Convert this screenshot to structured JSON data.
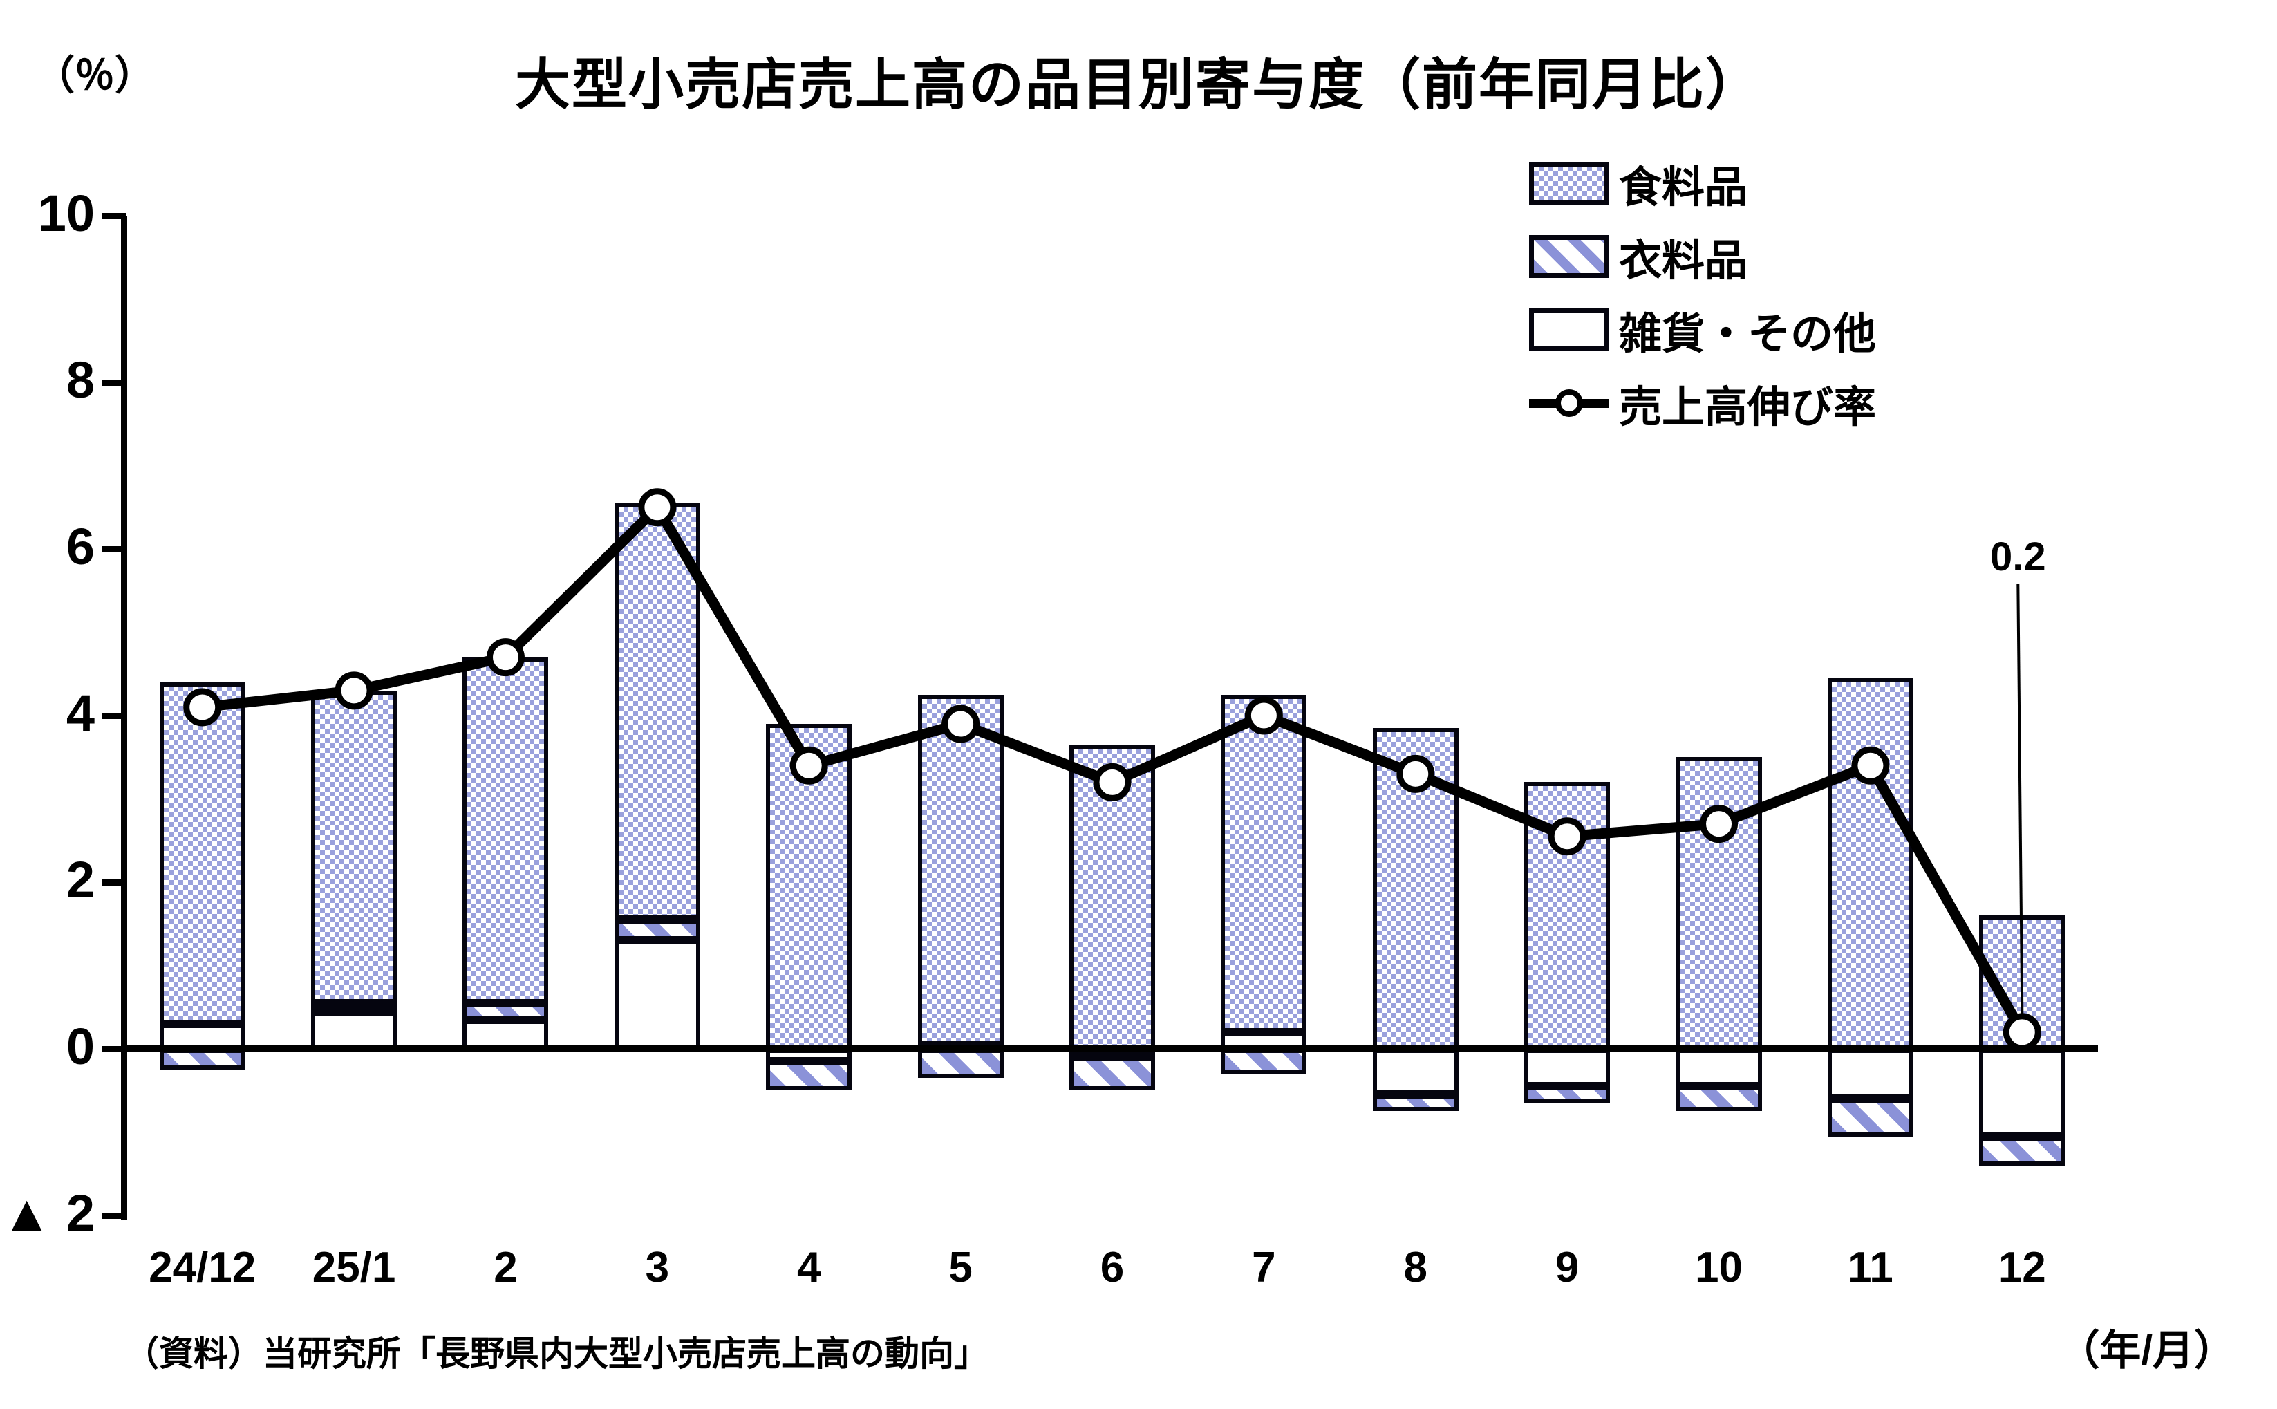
{
  "page": {
    "title": "大型小売店売上高の品目別寄与度（前年同月比）",
    "y_unit_label": "（％）",
    "x_unit_label": "（年/月）",
    "source": "（資料）当研究所「長野県内大型小売店売上高の動向」"
  },
  "legend": {
    "items": [
      {
        "label": "食料品",
        "swatch": "food-pattern-swatch"
      },
      {
        "label": "衣料品",
        "swatch": "clothing-pattern-swatch"
      },
      {
        "label": "雑貨・その他",
        "swatch": "misc-pattern-swatch"
      },
      {
        "label": "売上高伸び率",
        "swatch": "line-marker-swatch"
      }
    ]
  },
  "annotation": {
    "text": "0.2"
  },
  "chart_data": {
    "type": "bar",
    "subtype": "stacked-bars-with-line",
    "title": "大型小売店売上高の品目別寄与度（前年同月比）",
    "xlabel": "（年/月）",
    "ylabel": "（％）",
    "ylim": [
      -2,
      10
    ],
    "grid": false,
    "legend_position": "top-right",
    "categories": [
      "24/12",
      "25/1",
      "2",
      "3",
      "4",
      "5",
      "6",
      "7",
      "8",
      "9",
      "10",
      "11",
      "12"
    ],
    "ytick_values": [
      10,
      8,
      6,
      4,
      2,
      0,
      -2
    ],
    "ytick_labels": [
      "10",
      "8",
      "6",
      "4",
      "2",
      "0",
      "▲ 2"
    ],
    "series": [
      {
        "name": "食料品",
        "key": "food",
        "pattern": "lavender-checker",
        "color": "#9aa1dc",
        "values": [
          4.1,
          3.75,
          4.15,
          5.0,
          3.9,
          4.2,
          3.65,
          4.05,
          3.85,
          3.2,
          3.5,
          4.45,
          1.6
        ]
      },
      {
        "name": "衣料品",
        "key": "clothing",
        "pattern": "lavender-diagonal-hatch",
        "color": "#8b92d8",
        "values": [
          -0.25,
          0.1,
          0.2,
          0.25,
          -0.35,
          -0.35,
          -0.4,
          -0.3,
          -0.2,
          -0.2,
          -0.3,
          -0.45,
          -0.35
        ]
      },
      {
        "name": "雑貨・その他",
        "key": "misc",
        "pattern": "white",
        "color": "#ffffff",
        "values": [
          0.3,
          0.45,
          0.35,
          1.3,
          -0.15,
          0.05,
          -0.1,
          0.2,
          -0.55,
          -0.45,
          -0.45,
          -0.6,
          -1.05
        ]
      }
    ],
    "line_series": {
      "name": "売上高伸び率",
      "key": "sales-growth-rate",
      "color": "#000000",
      "marker": "open-circle",
      "values": [
        4.1,
        4.3,
        4.7,
        6.5,
        3.4,
        3.9,
        3.2,
        4.0,
        3.3,
        2.55,
        2.7,
        3.4,
        0.2
      ]
    },
    "annotations": [
      {
        "text": "0.2",
        "target_category": "12",
        "target_value": 0.2
      }
    ]
  }
}
